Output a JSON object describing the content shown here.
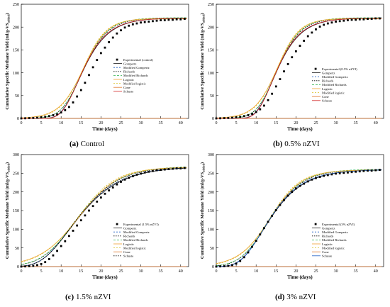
{
  "panels": [
    {
      "caption_label": "(a)",
      "caption_text": " Control"
    },
    {
      "caption_label": "(b)",
      "caption_text": " 0.5% nZVI"
    },
    {
      "caption_label": "(c)",
      "caption_text": " 1.5% nZVI"
    },
    {
      "caption_label": "(d)",
      "caption_text": " 3% nZVI"
    }
  ],
  "chart_data": [
    {
      "type": "line",
      "xlabel": "Time (days)",
      "ylabel": "Cumulative Specific Methane Yield (ml/g-VS",
      "ylabel_sub": "added",
      "ylabel_close": ")",
      "xlim": [
        0,
        42
      ],
      "ylim": [
        0,
        250
      ],
      "xticks": [
        0,
        5,
        10,
        15,
        20,
        25,
        30,
        35,
        40
      ],
      "yticks": [
        0,
        50,
        100,
        150,
        200,
        250
      ],
      "legend_position": "center-right",
      "experimental": {
        "name": "Experimental (control)",
        "x": [
          0,
          1,
          2,
          3,
          4,
          5,
          6,
          7,
          8,
          9,
          10,
          11,
          12,
          13,
          14,
          15,
          16,
          17,
          18,
          19,
          20,
          21,
          22,
          23,
          24,
          25,
          26,
          27,
          28,
          29,
          30,
          31,
          32,
          33,
          34,
          35,
          36,
          37,
          38,
          39,
          40,
          41
        ],
        "y": [
          0,
          0.3,
          0.6,
          1,
          1.5,
          2.5,
          3.5,
          5,
          7,
          9,
          13,
          18,
          25,
          35,
          48,
          62,
          78,
          95,
          112,
          128,
          143,
          155,
          167,
          177,
          186,
          193,
          199,
          203,
          206,
          208,
          210,
          211,
          212,
          213,
          214,
          215,
          215,
          216,
          216,
          217,
          217,
          218
        ]
      },
      "models": {
        "A": 220,
        "rm": 19,
        "lambda": 10,
        "series": [
          {
            "name": "Gompertz",
            "color": "#1a1a1a",
            "dash": ""
          },
          {
            "name": "Modified Gompertz",
            "color": "#1f5fc4",
            "dash": "2,2"
          },
          {
            "name": "Richards",
            "color": "#000000",
            "dash": "1.5,1.5"
          },
          {
            "name": "Modified Richards",
            "color": "#2ab24a",
            "dash": "3,2"
          },
          {
            "name": "Logistic",
            "color": "#f0a030",
            "dash": ""
          },
          {
            "name": "Modified logistic",
            "color": "#d8c020",
            "dash": "2,2"
          },
          {
            "name": "Cone",
            "color": "#e07a30",
            "dash": ""
          },
          {
            "name": "Schuste",
            "color": "#d02020",
            "dash": ""
          }
        ]
      }
    },
    {
      "type": "line",
      "xlabel": "Time (days)",
      "ylabel": "Cumulative Specific Methane Yield (ml/g-VS",
      "ylabel_sub": "added",
      "ylabel_close": ")",
      "xlim": [
        0,
        42
      ],
      "ylim": [
        0,
        250
      ],
      "xticks": [
        0,
        5,
        10,
        15,
        20,
        25,
        30,
        35,
        40
      ],
      "yticks": [
        0,
        50,
        100,
        150,
        200,
        250
      ],
      "legend_position": "center-right",
      "experimental": {
        "name": "Experimental (0.5% nZVI)",
        "x": [
          0,
          1,
          2,
          3,
          4,
          5,
          6,
          7,
          8,
          9,
          10,
          11,
          12,
          13,
          14,
          15,
          16,
          17,
          18,
          19,
          20,
          21,
          22,
          23,
          24,
          25,
          26,
          27,
          28,
          29,
          30,
          31,
          32,
          33,
          34,
          35,
          36,
          37,
          38,
          39,
          40,
          41
        ],
        "y": [
          0,
          0.3,
          0.6,
          1,
          1.5,
          2.5,
          3.5,
          5,
          7,
          10,
          14,
          20,
          28,
          40,
          54,
          70,
          86,
          103,
          119,
          134,
          147,
          159,
          170,
          180,
          188,
          195,
          201,
          205,
          208,
          210,
          212,
          213,
          214,
          215,
          216,
          216,
          217,
          217,
          218,
          218,
          219,
          219
        ]
      },
      "models": {
        "A": 220,
        "rm": 20,
        "lambda": 10,
        "series": [
          {
            "name": "Gompertz",
            "color": "#1a1a1a",
            "dash": ""
          },
          {
            "name": "Modified Gompertz",
            "color": "#1f5fc4",
            "dash": "2,2"
          },
          {
            "name": "Richards",
            "color": "#000000",
            "dash": "1.5,1.5"
          },
          {
            "name": "Modified Richards",
            "color": "#2ab24a",
            "dash": "3,2"
          },
          {
            "name": "Logistic",
            "color": "#f0a030",
            "dash": ""
          },
          {
            "name": "Modified logistic",
            "color": "#d8c020",
            "dash": "2,2"
          },
          {
            "name": "Cone",
            "color": "#e07a30",
            "dash": ""
          },
          {
            "name": "Schuste",
            "color": "#d02020",
            "dash": ""
          }
        ]
      }
    },
    {
      "type": "line",
      "xlabel": "Time (days)",
      "ylabel": "Cumulative Specific Methane Yield (ml/g-VS",
      "ylabel_sub": "added",
      "ylabel_close": ")",
      "xlim": [
        0,
        42
      ],
      "ylim": [
        0,
        300
      ],
      "xticks": [
        0,
        5,
        10,
        15,
        20,
        25,
        30,
        35,
        40
      ],
      "yticks": [
        0,
        50,
        100,
        150,
        200,
        250,
        300
      ],
      "legend_position": "bottom-right",
      "experimental": {
        "name": "Experimental (1.5% nZVI)",
        "x": [
          0,
          1,
          2,
          3,
          4,
          5,
          6,
          7,
          8,
          9,
          10,
          11,
          12,
          13,
          14,
          15,
          16,
          17,
          18,
          19,
          20,
          21,
          22,
          23,
          24,
          25,
          26,
          27,
          28,
          29,
          30,
          31,
          32,
          33,
          34,
          35,
          36,
          37,
          38,
          39,
          40,
          41
        ],
        "y": [
          0,
          0.5,
          1,
          2,
          4,
          7,
          12,
          20,
          30,
          42,
          55,
          68,
          82,
          96,
          110,
          124,
          137,
          150,
          162,
          174,
          185,
          195,
          204,
          212,
          220,
          227,
          233,
          238,
          242,
          246,
          249,
          252,
          254,
          256,
          258,
          259,
          260,
          261,
          262,
          263,
          263,
          264
        ]
      },
      "models": {
        "A": 268,
        "rm": 14,
        "lambda": 5,
        "series": [
          {
            "name": "Gompertz",
            "color": "#1a1a1a",
            "dash": ""
          },
          {
            "name": "Modified Gompertz",
            "color": "#1f5fc4",
            "dash": "2,2"
          },
          {
            "name": "Richards",
            "color": "#000000",
            "dash": "1.5,1.5"
          },
          {
            "name": "Modified Richards",
            "color": "#2ab24a",
            "dash": "3,2"
          },
          {
            "name": "Logistic",
            "color": "#f0a030",
            "dash": ""
          },
          {
            "name": "Modified logistic",
            "color": "#d8c020",
            "dash": "2,2"
          },
          {
            "name": "Cone",
            "color": "#e07a30",
            "dash": ""
          },
          {
            "name": "Schuste",
            "color": "#000000",
            "dash": "1.5,1.5"
          }
        ]
      }
    },
    {
      "type": "line",
      "xlabel": "Time (days)",
      "ylabel": "Cumulative Specific Methane Yield (ml/g-VS",
      "ylabel_sub": "added",
      "ylabel_close": ")",
      "xlim": [
        0,
        42
      ],
      "ylim": [
        0,
        300
      ],
      "xticks": [
        0,
        5,
        10,
        15,
        20,
        25,
        30,
        35,
        40
      ],
      "yticks": [
        0,
        50,
        100,
        150,
        200,
        250,
        300
      ],
      "legend_position": "bottom-right",
      "experimental": {
        "name": "Experimental (3% nZVI)",
        "x": [
          0,
          1,
          2,
          3,
          4,
          5,
          6,
          7,
          8,
          9,
          10,
          11,
          12,
          13,
          14,
          15,
          16,
          17,
          18,
          19,
          20,
          21,
          22,
          23,
          24,
          25,
          26,
          27,
          28,
          29,
          30,
          31,
          32,
          33,
          34,
          35,
          36,
          37,
          38,
          39,
          40,
          41
        ],
        "y": [
          0,
          0.5,
          1,
          2,
          4,
          8,
          15,
          25,
          38,
          53,
          69,
          86,
          103,
          120,
          136,
          151,
          165,
          178,
          190,
          200,
          209,
          216,
          222,
          228,
          233,
          237,
          240,
          243,
          245,
          247,
          249,
          250,
          251,
          252,
          253,
          254,
          255,
          256,
          257,
          257,
          258,
          259
        ]
      },
      "models": {
        "A": 260,
        "rm": 17,
        "lambda": 6,
        "series": [
          {
            "name": "Gompertz",
            "color": "#1a1a1a",
            "dash": ""
          },
          {
            "name": "Modified Gompertz",
            "color": "#1f5fc4",
            "dash": "2,2"
          },
          {
            "name": "Richards",
            "color": "#000000",
            "dash": "1.5,1.5"
          },
          {
            "name": "Modified Richards",
            "color": "#2ab24a",
            "dash": "3,2"
          },
          {
            "name": "Logistic",
            "color": "#f0a030",
            "dash": ""
          },
          {
            "name": "Modified logistic",
            "color": "#d8c020",
            "dash": "2,2"
          },
          {
            "name": "Cone",
            "color": "#e07a30",
            "dash": ""
          },
          {
            "name": "Schuste",
            "color": "#1f5fc4",
            "dash": ""
          }
        ]
      }
    }
  ]
}
